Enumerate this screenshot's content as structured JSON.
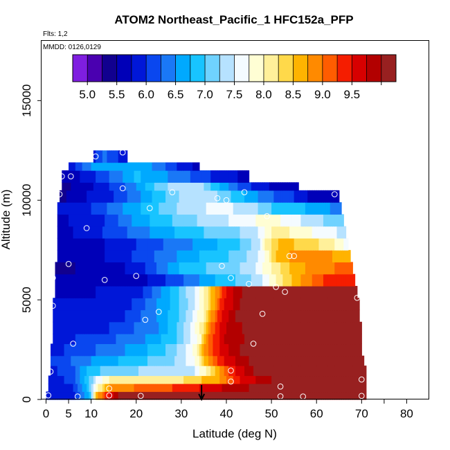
{
  "chart_data": {
    "type": "heatmap",
    "title": "ATOM2 Northeast_Pacific_1 HFC152a_PFP",
    "flights_label": "Flts: 1,2",
    "mmdd_label": "MMDD: 0126,0129",
    "xlabel": "Latitude (deg N)",
    "ylabel": "Altitude (m)",
    "xlim": [
      -1,
      85
    ],
    "ylim": [
      0,
      18000
    ],
    "x_ticks": [
      0,
      5,
      10,
      20,
      30,
      40,
      50,
      60,
      70,
      80
    ],
    "x_minor_ticks": [
      75
    ],
    "y_ticks": [
      0,
      5000,
      10000,
      15000
    ],
    "colorbar": {
      "range": [
        4.75,
        10.25
      ],
      "tick_values": [
        5.0,
        5.5,
        6.0,
        6.5,
        7.0,
        7.5,
        8.0,
        8.5,
        9.0,
        9.5
      ],
      "tick_labels": [
        "5.0",
        "5.5",
        "6.0",
        "6.5",
        "7.0",
        "7.5",
        "8.0",
        "8.5",
        "9.0",
        "9.5"
      ],
      "colors": [
        "#7f1ee0",
        "#4a00b0",
        "#11008f",
        "#0000b8",
        "#0017d8",
        "#0a47ef",
        "#1a78f6",
        "#00a9fe",
        "#18c4ff",
        "#6fd2ff",
        "#b6e2ff",
        "#f4fbff",
        "#fffed4",
        "#fff09a",
        "#ffd94a",
        "#ffb300",
        "#ff8a00",
        "#ff5c00",
        "#f51d00",
        "#d70000",
        "#b20000",
        "#982020"
      ]
    },
    "marker_latitude": 34.5,
    "samples": [
      [
        0.5,
        200
      ],
      [
        7,
        150
      ],
      [
        14,
        200
      ],
      [
        21,
        180
      ],
      [
        52,
        160
      ],
      [
        57,
        150
      ],
      [
        70,
        180
      ],
      [
        14,
        550
      ],
      [
        41,
        900
      ],
      [
        52,
        650
      ],
      [
        70,
        1000
      ],
      [
        1,
        1400
      ],
      [
        41,
        1450
      ],
      [
        6,
        2800
      ],
      [
        46,
        2800
      ],
      [
        22,
        4000
      ],
      [
        25,
        4400
      ],
      [
        1.5,
        4700
      ],
      [
        48,
        4300
      ],
      [
        1.5,
        6100
      ],
      [
        13,
        6000
      ],
      [
        20,
        6200
      ],
      [
        41,
        6100
      ],
      [
        45,
        5800
      ],
      [
        51,
        5650
      ],
      [
        53,
        5400
      ],
      [
        69,
        5100
      ],
      [
        5,
        6800
      ],
      [
        39,
        6700
      ],
      [
        54,
        7200
      ],
      [
        55,
        7200
      ],
      [
        9,
        8600
      ],
      [
        49,
        9200
      ],
      [
        23,
        9600
      ],
      [
        38,
        10100
      ],
      [
        40,
        10000
      ],
      [
        44,
        10400
      ],
      [
        28,
        10400
      ],
      [
        17,
        10600
      ],
      [
        3,
        10300
      ],
      [
        64,
        10300
      ],
      [
        3.5,
        11200
      ],
      [
        5.5,
        11200
      ],
      [
        11,
        12200
      ],
      [
        17,
        12400
      ]
    ],
    "altitude_bins": [
      {
        "alt": [
          0,
          400
        ],
        "x": [
          0,
          71
        ],
        "stops": [
          [
            0,
            5.8
          ],
          [
            6,
            5.9
          ],
          [
            8,
            6.3
          ],
          [
            10,
            7.0
          ],
          [
            11,
            8.6
          ],
          [
            13,
            9.2
          ],
          [
            16,
            10.0
          ],
          [
            30,
            10.2
          ],
          [
            45,
            10.1
          ],
          [
            60,
            10.1
          ],
          [
            71,
            10.2
          ]
        ]
      },
      {
        "alt": [
          400,
          800
        ],
        "x": [
          0.5,
          71
        ],
        "stops": [
          [
            0.5,
            5.8
          ],
          [
            6,
            6.0
          ],
          [
            9,
            6.7
          ],
          [
            11,
            7.8
          ],
          [
            14,
            8.8
          ],
          [
            22,
            9.1
          ],
          [
            30,
            9.3
          ],
          [
            38,
            9.7
          ],
          [
            45,
            10.0
          ],
          [
            55,
            10.1
          ],
          [
            71,
            10.2
          ]
        ]
      },
      {
        "alt": [
          800,
          1200
        ],
        "x": [
          0.5,
          71
        ],
        "stops": [
          [
            0.5,
            5.8
          ],
          [
            6,
            6.1
          ],
          [
            9,
            6.9
          ],
          [
            12,
            7.7
          ],
          [
            14,
            8.0
          ],
          [
            20,
            8.0
          ],
          [
            28,
            8.1
          ],
          [
            38,
            8.7
          ],
          [
            43,
            9.5
          ],
          [
            50,
            10.0
          ],
          [
            71,
            10.2
          ]
        ]
      },
      {
        "alt": [
          1200,
          1700
        ],
        "x": [
          1,
          71
        ],
        "stops": [
          [
            1,
            5.9
          ],
          [
            6,
            6.2
          ],
          [
            10,
            6.9
          ],
          [
            16,
            7.2
          ],
          [
            25,
            7.3
          ],
          [
            33,
            7.5
          ],
          [
            37,
            8.3
          ],
          [
            41,
            9.4
          ],
          [
            46,
            10.0
          ],
          [
            71,
            10.2
          ]
        ]
      },
      {
        "alt": [
          1700,
          2200
        ],
        "x": [
          1,
          70.5
        ],
        "stops": [
          [
            1,
            6.0
          ],
          [
            10,
            6.5
          ],
          [
            20,
            6.9
          ],
          [
            28,
            7.2
          ],
          [
            33,
            7.7
          ],
          [
            36,
            8.8
          ],
          [
            40,
            9.6
          ],
          [
            45,
            10.0
          ],
          [
            70.5,
            10.2
          ]
        ]
      },
      {
        "alt": [
          2200,
          2800
        ],
        "x": [
          1,
          70
        ],
        "stops": [
          [
            1,
            5.9
          ],
          [
            10,
            6.2
          ],
          [
            20,
            6.6
          ],
          [
            28,
            7.1
          ],
          [
            33,
            7.8
          ],
          [
            35,
            8.8
          ],
          [
            39,
            9.6
          ],
          [
            43,
            10.0
          ],
          [
            70,
            10.2
          ]
        ]
      },
      {
        "alt": [
          2800,
          3300
        ],
        "x": [
          1.5,
          70
        ],
        "stops": [
          [
            1.5,
            5.9
          ],
          [
            12,
            6.1
          ],
          [
            22,
            6.5
          ],
          [
            29,
            7.0
          ],
          [
            34,
            7.8
          ],
          [
            36,
            9.0
          ],
          [
            40,
            9.8
          ],
          [
            46,
            10.1
          ],
          [
            70,
            10.2
          ]
        ]
      },
      {
        "alt": [
          3300,
          3900
        ],
        "x": [
          1.5,
          70
        ],
        "stops": [
          [
            1.5,
            5.8
          ],
          [
            14,
            6.0
          ],
          [
            25,
            6.5
          ],
          [
            30,
            7.1
          ],
          [
            34,
            7.9
          ],
          [
            37,
            9.2
          ],
          [
            41,
            9.9
          ],
          [
            46,
            10.1
          ],
          [
            70,
            10.2
          ]
        ]
      },
      {
        "alt": [
          3900,
          4500
        ],
        "x": [
          1.5,
          69.5
        ],
        "stops": [
          [
            1.5,
            5.8
          ],
          [
            16,
            5.9
          ],
          [
            26,
            6.6
          ],
          [
            31,
            7.2
          ],
          [
            35,
            8.0
          ],
          [
            38,
            9.3
          ],
          [
            42,
            10.0
          ],
          [
            48,
            10.1
          ],
          [
            69.5,
            10.1
          ]
        ]
      },
      {
        "alt": [
          4500,
          5100
        ],
        "x": [
          1.5,
          69.5
        ],
        "stops": [
          [
            1.5,
            5.8
          ],
          [
            18,
            5.9
          ],
          [
            27,
            6.7
          ],
          [
            32,
            7.3
          ],
          [
            36,
            8.2
          ],
          [
            39,
            9.4
          ],
          [
            43,
            10.0
          ],
          [
            69.5,
            10.1
          ]
        ]
      },
      {
        "alt": [
          5100,
          5700
        ],
        "x": [
          2,
          69
        ],
        "stops": [
          [
            2,
            5.7
          ],
          [
            20,
            5.8
          ],
          [
            28,
            6.8
          ],
          [
            33,
            7.5
          ],
          [
            36,
            8.3
          ],
          [
            40,
            9.5
          ],
          [
            44,
            10.1
          ],
          [
            69,
            10.1
          ]
        ]
      },
      {
        "alt": [
          5700,
          6300
        ],
        "x": [
          2,
          68.5
        ],
        "stops": [
          [
            2,
            5.5
          ],
          [
            20,
            5.6
          ],
          [
            30,
            6.2
          ],
          [
            38,
            6.8
          ],
          [
            44,
            7.1
          ],
          [
            48,
            7.5
          ],
          [
            52,
            8.2
          ],
          [
            58,
            8.9
          ],
          [
            63,
            9.4
          ],
          [
            68.5,
            9.5
          ]
        ]
      },
      {
        "alt": [
          6300,
          6900
        ],
        "x": [
          2,
          68
        ],
        "stops": [
          [
            2,
            5.4
          ],
          [
            20,
            5.8
          ],
          [
            30,
            6.8
          ],
          [
            38,
            7.1
          ],
          [
            45,
            7.3
          ],
          [
            49,
            7.9
          ],
          [
            53,
            8.4
          ],
          [
            58,
            8.8
          ],
          [
            64,
            9.0
          ],
          [
            68,
            9.0
          ]
        ]
      },
      {
        "alt": [
          6900,
          7500
        ],
        "x": [
          2.5,
          67.5
        ],
        "stops": [
          [
            2.5,
            5.5
          ],
          [
            15,
            5.8
          ],
          [
            25,
            6.3
          ],
          [
            35,
            6.8
          ],
          [
            43,
            7.1
          ],
          [
            48,
            7.6
          ],
          [
            51,
            8.5
          ],
          [
            56,
            8.9
          ],
          [
            62,
            8.8
          ],
          [
            67.5,
            8.6
          ]
        ]
      },
      {
        "alt": [
          7500,
          8100
        ],
        "x": [
          2.5,
          67
        ],
        "stops": [
          [
            2.5,
            5.5
          ],
          [
            15,
            5.8
          ],
          [
            25,
            6.2
          ],
          [
            35,
            6.6
          ],
          [
            43,
            7.0
          ],
          [
            47,
            7.4
          ],
          [
            49,
            8.1
          ],
          [
            52,
            8.6
          ],
          [
            58,
            8.4
          ],
          [
            64,
            8.0
          ],
          [
            67,
            7.6
          ]
        ]
      },
      {
        "alt": [
          8100,
          8700
        ],
        "x": [
          2.5,
          66.5
        ],
        "stops": [
          [
            2.5,
            5.6
          ],
          [
            15,
            6.1
          ],
          [
            25,
            6.6
          ],
          [
            35,
            7.0
          ],
          [
            42,
            7.2
          ],
          [
            47,
            7.5
          ],
          [
            50,
            8.0
          ],
          [
            54,
            8.0
          ],
          [
            60,
            7.7
          ],
          [
            66.5,
            7.4
          ]
        ]
      },
      {
        "alt": [
          8700,
          9300
        ],
        "x": [
          2.5,
          66
        ],
        "stops": [
          [
            2.5,
            5.7
          ],
          [
            12,
            5.9
          ],
          [
            20,
            6.6
          ],
          [
            30,
            7.1
          ],
          [
            37,
            7.4
          ],
          [
            44,
            7.6
          ],
          [
            49,
            7.9
          ],
          [
            55,
            7.6
          ],
          [
            60,
            7.3
          ],
          [
            66,
            7.1
          ]
        ]
      },
      {
        "alt": [
          9300,
          9900
        ],
        "x": [
          2.5,
          65.5
        ],
        "stops": [
          [
            2.5,
            5.8
          ],
          [
            10,
            6.0
          ],
          [
            20,
            6.7
          ],
          [
            30,
            7.3
          ],
          [
            38,
            7.6
          ],
          [
            45,
            7.4
          ],
          [
            50,
            7.0
          ],
          [
            56,
            6.8
          ],
          [
            62,
            6.6
          ],
          [
            65.5,
            6.3
          ]
        ]
      },
      {
        "alt": [
          9900,
          10500
        ],
        "x": [
          3,
          65
        ],
        "stops": [
          [
            3,
            5.4
          ],
          [
            8,
            5.7
          ],
          [
            15,
            6.0
          ],
          [
            22,
            6.6
          ],
          [
            30,
            7.3
          ],
          [
            36,
            7.4
          ],
          [
            42,
            6.9
          ],
          [
            48,
            6.4
          ],
          [
            55,
            6.0
          ],
          [
            60,
            5.6
          ],
          [
            63,
            5.6
          ],
          [
            65,
            5.5
          ]
        ]
      },
      {
        "alt": [
          10500,
          10900
        ],
        "x": [
          3.5,
          56
        ],
        "stops": [
          [
            3.5,
            5.4
          ],
          [
            10,
            5.7
          ],
          [
            18,
            6.3
          ],
          [
            26,
            7.2
          ],
          [
            33,
            7.5
          ],
          [
            38,
            6.8
          ],
          [
            44,
            6.1
          ],
          [
            50,
            5.7
          ],
          [
            56,
            5.5
          ]
        ]
      },
      {
        "alt": [
          10900,
          11500
        ],
        "x": [
          3.5,
          45
        ],
        "stops": [
          [
            3.5,
            5.5
          ],
          [
            10,
            5.9
          ],
          [
            16,
            6.4
          ],
          [
            20,
            6.8
          ],
          [
            27,
            6.5
          ],
          [
            33,
            6.2
          ],
          [
            40,
            5.8
          ],
          [
            45,
            5.7
          ]
        ]
      },
      {
        "alt": [
          11500,
          11900
        ],
        "x": [
          5,
          34
        ],
        "stops": [
          [
            5,
            5.8
          ],
          [
            10,
            6.5
          ],
          [
            16,
            6.7
          ],
          [
            22,
            6.6
          ],
          [
            27,
            6.2
          ],
          [
            31,
            5.8
          ],
          [
            34,
            5.7
          ]
        ]
      },
      {
        "alt": [
          11900,
          12500
        ],
        "x": [
          10.5,
          18
        ],
        "stops": [
          [
            10.5,
            5.9
          ],
          [
            13,
            6.3
          ],
          [
            16,
            6.0
          ],
          [
            18,
            5.8
          ]
        ]
      }
    ]
  }
}
